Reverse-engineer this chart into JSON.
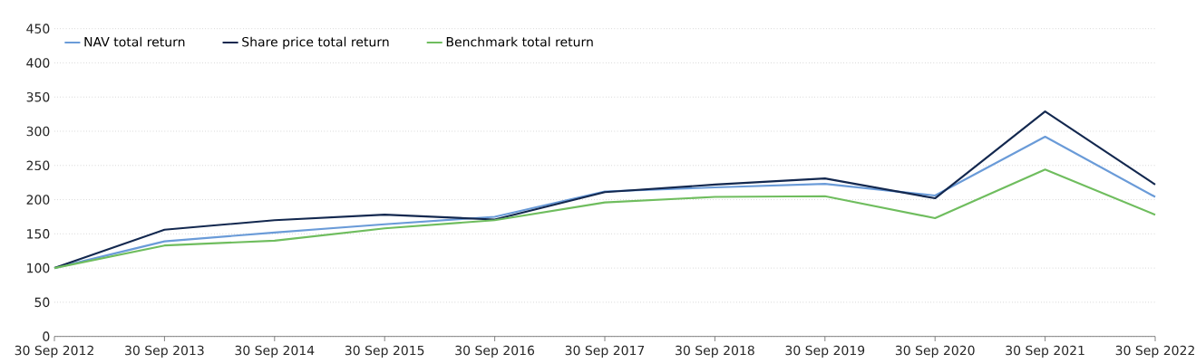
{
  "chart_data": {
    "type": "line",
    "categories": [
      "30 Sep 2012",
      "30 Sep 2013",
      "30 Sep 2014",
      "30 Sep 2015",
      "30 Sep 2016",
      "30 Sep 2017",
      "30 Sep 2018",
      "30 Sep 2019",
      "30 Sep 2020",
      "30 Sep 2021",
      "30 Sep 2022"
    ],
    "series": [
      {
        "name": "NAV total return",
        "color": "#6a9bd8",
        "values": [
          100,
          139,
          152,
          164,
          175,
          212,
          218,
          223,
          206,
          292,
          204
        ]
      },
      {
        "name": "Share price total return",
        "color": "#13284f",
        "values": [
          100,
          156,
          170,
          178,
          171,
          211,
          222,
          231,
          202,
          329,
          222
        ]
      },
      {
        "name": "Benchmark total return",
        "color": "#6fbd5e",
        "values": [
          100,
          133,
          140,
          158,
          170,
          196,
          204,
          205,
          173,
          244,
          178
        ]
      }
    ],
    "ylim": [
      0,
      450
    ],
    "yticks": [
      0,
      50,
      100,
      150,
      200,
      250,
      300,
      350,
      400,
      450
    ],
    "grid": "y",
    "legend": "top left",
    "marker": "none",
    "line_style": "solid"
  }
}
